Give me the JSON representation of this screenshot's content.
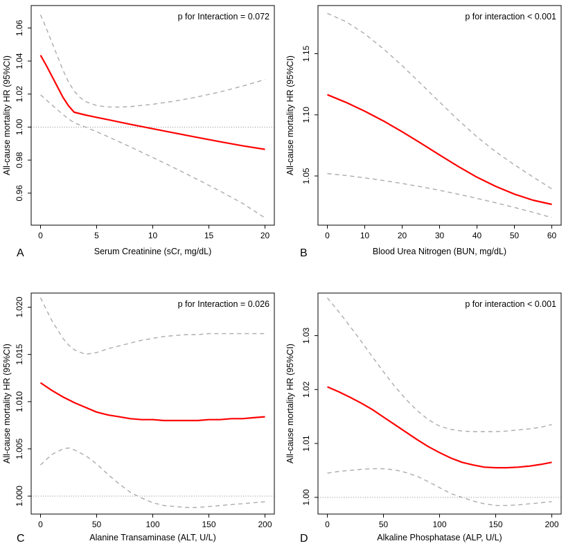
{
  "figure": {
    "description": "Restricted cubic spline plots of all-cause mortality hazard ratios, 2x2 grid of panels A-D",
    "grid": "2x2",
    "legend": "none",
    "background": "#ffffff"
  },
  "colors": {
    "estimate": "#ff0000",
    "confidence_interval": "#ababab",
    "reference_line": "#707070",
    "axis": "#000000"
  },
  "chart_data": [
    {
      "panel_label": "A",
      "type": "line",
      "annotation": "p for Interaction = 0.072",
      "xlabel": "Serum Creatinine (sCr, mg/dL)",
      "ylabel": "All-cause mortality HR (95%CI)",
      "x_tick_labels": [
        "0",
        "5",
        "10",
        "15",
        "20"
      ],
      "x_tick_values": [
        0,
        5,
        10,
        15,
        20
      ],
      "y_tick_labels": [
        "0.96",
        "0.98",
        "1.00",
        "1.02",
        "1.04",
        "1.06"
      ],
      "y_tick_values": [
        0.96,
        0.98,
        1.0,
        1.02,
        1.04,
        1.06
      ],
      "xlim": [
        -0.83,
        20.83
      ],
      "ylim": [
        0.9406,
        1.0736
      ],
      "grid": false,
      "reference_line_y": 1.0,
      "series": [
        {
          "name": "All-cause mortality HR",
          "role": "estimate",
          "line_style": "solid",
          "color": "#ff0000",
          "x": [
            0,
            0.5,
            1,
            1.5,
            2,
            2.5,
            3,
            4,
            5,
            6,
            8,
            10,
            12,
            14,
            16,
            18,
            20
          ],
          "y": [
            1.0435,
            1.0375,
            1.031,
            1.0245,
            1.018,
            1.0128,
            1.009,
            1.0073,
            1.0059,
            1.0045,
            1.0017,
            0.999,
            0.9963,
            0.9937,
            0.9911,
            0.9887,
            0.9865
          ]
        },
        {
          "name": "Upper 95% CI",
          "role": "ci-upper",
          "line_style": "dashed",
          "color": "#ababab",
          "x": [
            0,
            0.5,
            1,
            1.5,
            2,
            2.5,
            3,
            3.5,
            4,
            5,
            6,
            7,
            8,
            10,
            12,
            14,
            16,
            18,
            20
          ],
          "y": [
            1.068,
            1.06,
            1.0515,
            1.043,
            1.0345,
            1.0272,
            1.0218,
            1.018,
            1.0155,
            1.013,
            1.0122,
            1.0121,
            1.0124,
            1.0138,
            1.0158,
            1.0183,
            1.0213,
            1.0248,
            1.0288
          ]
        },
        {
          "name": "Lower 95% CI",
          "role": "ci-lower",
          "line_style": "dashed",
          "color": "#ababab",
          "x": [
            0,
            0.5,
            1,
            1.5,
            2,
            2.5,
            3,
            4,
            5,
            6,
            8,
            10,
            12,
            14,
            16,
            18,
            20
          ],
          "y": [
            1.0195,
            1.0165,
            1.0135,
            1.0105,
            1.0076,
            1.0049,
            1.0026,
            1.0,
            0.9972,
            0.9942,
            0.988,
            0.9816,
            0.975,
            0.9682,
            0.9612,
            0.9538,
            0.945
          ]
        }
      ]
    },
    {
      "panel_label": "B",
      "type": "line",
      "annotation": "p for interaction < 0.001",
      "xlabel": "Blood Urea Nitrogen (BUN, mg/dL)",
      "ylabel": "All-cause mortality HR (95%CI)",
      "x_tick_labels": [
        "0",
        "10",
        "20",
        "30",
        "40",
        "50",
        "60"
      ],
      "x_tick_values": [
        0,
        10,
        20,
        30,
        40,
        50,
        60
      ],
      "y_tick_labels": [
        "1.05",
        "1.10",
        "1.15"
      ],
      "y_tick_values": [
        1.05,
        1.1,
        1.15
      ],
      "xlim": [
        -2.5,
        62.5
      ],
      "ylim": [
        1.0098,
        1.1894
      ],
      "grid": false,
      "reference_line_y": null,
      "series": [
        {
          "name": "All-cause mortality HR",
          "role": "estimate",
          "line_style": "solid",
          "color": "#ff0000",
          "x": [
            0,
            5,
            10,
            15,
            20,
            25,
            30,
            35,
            40,
            45,
            50,
            55,
            60
          ],
          "y": [
            1.1165,
            1.1102,
            1.103,
            1.095,
            1.0862,
            1.0768,
            1.0672,
            1.0578,
            1.049,
            1.0415,
            1.0352,
            1.0302,
            1.0268
          ]
        },
        {
          "name": "Upper 95% CI",
          "role": "ci-upper",
          "line_style": "dashed",
          "color": "#ababab",
          "x": [
            0,
            5,
            10,
            15,
            20,
            25,
            30,
            35,
            40,
            45,
            50,
            55,
            60
          ],
          "y": [
            1.183,
            1.1762,
            1.1662,
            1.154,
            1.1402,
            1.1255,
            1.1105,
            1.0958,
            1.082,
            1.0698,
            1.0592,
            1.0492,
            1.0395
          ]
        },
        {
          "name": "Lower 95% CI",
          "role": "ci-lower",
          "line_style": "dashed",
          "color": "#ababab",
          "x": [
            0,
            5,
            10,
            15,
            20,
            25,
            30,
            35,
            40,
            45,
            50,
            55,
            60
          ],
          "y": [
            1.052,
            1.0504,
            1.0485,
            1.0463,
            1.0439,
            1.0412,
            1.0383,
            1.0351,
            1.0317,
            1.0281,
            1.0243,
            1.0203,
            1.016
          ]
        }
      ]
    },
    {
      "panel_label": "C",
      "type": "line",
      "annotation": "p for Interaction = 0.026",
      "xlabel": "Alanine Transaminase (ALT, U/L)",
      "ylabel": "All-cause mortality HR (95%CI)",
      "x_tick_labels": [
        "0",
        "50",
        "100",
        "150",
        "200"
      ],
      "x_tick_values": [
        0,
        50,
        100,
        150,
        200
      ],
      "y_tick_labels": [
        "1.000",
        "1.005",
        "1.010",
        "1.015",
        "1.020"
      ],
      "y_tick_values": [
        1.0,
        1.005,
        1.01,
        1.015,
        1.02
      ],
      "xlim": [
        -8.33,
        208.33
      ],
      "ylim": [
        0.9981,
        1.0215
      ],
      "grid": false,
      "reference_line_y": 1.0,
      "series": [
        {
          "name": "All-cause mortality HR",
          "role": "estimate",
          "line_style": "solid",
          "color": "#ff0000",
          "x": [
            0,
            10,
            20,
            25,
            30,
            40,
            50,
            60,
            70,
            80,
            90,
            100,
            110,
            120,
            130,
            140,
            150,
            160,
            170,
            180,
            190,
            200
          ],
          "y": [
            1.012,
            1.0112,
            1.0105,
            1.0102,
            1.0099,
            1.0094,
            1.0089,
            1.0086,
            1.0084,
            1.0082,
            1.0081,
            1.0081,
            1.008,
            1.008,
            1.008,
            1.008,
            1.0081,
            1.0081,
            1.0082,
            1.0082,
            1.0083,
            1.0084
          ]
        },
        {
          "name": "Upper 95% CI",
          "role": "ci-upper",
          "line_style": "dashed",
          "color": "#ababab",
          "x": [
            0,
            10,
            20,
            25,
            30,
            40,
            50,
            60,
            70,
            80,
            90,
            100,
            110,
            120,
            130,
            140,
            150,
            160,
            170,
            180,
            190,
            200
          ],
          "y": [
            1.021,
            1.0186,
            1.0167,
            1.016,
            1.0155,
            1.015,
            1.0152,
            1.0156,
            1.0159,
            1.0162,
            1.0165,
            1.0167,
            1.0169,
            1.017,
            1.0171,
            1.0171,
            1.0172,
            1.0172,
            1.0172,
            1.0172,
            1.0172,
            1.0172
          ]
        },
        {
          "name": "Lower 95% CI",
          "role": "ci-lower",
          "line_style": "dashed",
          "color": "#ababab",
          "x": [
            0,
            10,
            20,
            25,
            30,
            40,
            50,
            60,
            70,
            80,
            90,
            100,
            110,
            120,
            130,
            140,
            150,
            160,
            170,
            180,
            190,
            200
          ],
          "y": [
            1.0033,
            1.0044,
            1.005,
            1.0051,
            1.0049,
            1.0043,
            1.0034,
            1.0023,
            1.0013,
            1.0004,
            0.9998,
            0.9993,
            0.999,
            0.9989,
            0.9988,
            0.9988,
            0.9989,
            0.999,
            0.9991,
            0.9992,
            0.9993,
            0.9994
          ]
        }
      ]
    },
    {
      "panel_label": "D",
      "type": "line",
      "annotation": "p for interaction < 0.001",
      "xlabel": "Alkaline Phosphatase (ALP, U/L)",
      "ylabel": "All-cause mortality HR (95%CI)",
      "x_tick_labels": [
        "0",
        "50",
        "100",
        "150",
        "200"
      ],
      "x_tick_values": [
        0,
        50,
        100,
        150,
        200
      ],
      "y_tick_labels": [
        "1.00",
        "1.01",
        "1.02",
        "1.03"
      ],
      "y_tick_values": [
        1.0,
        1.01,
        1.02,
        1.03
      ],
      "xlim": [
        -8.33,
        208.33
      ],
      "ylim": [
        0.9969,
        1.0379
      ],
      "grid": false,
      "reference_line_y": 1.0,
      "series": [
        {
          "name": "All-cause mortality HR",
          "role": "estimate",
          "line_style": "solid",
          "color": "#ff0000",
          "x": [
            0,
            10,
            20,
            30,
            40,
            50,
            60,
            70,
            80,
            90,
            100,
            110,
            120,
            130,
            140,
            150,
            160,
            170,
            180,
            190,
            200
          ],
          "y": [
            1.0205,
            1.0196,
            1.0186,
            1.0175,
            1.0163,
            1.0149,
            1.0135,
            1.0121,
            1.0107,
            1.0094,
            1.0083,
            1.0073,
            1.0065,
            1.006,
            1.0056,
            1.0055,
            1.0055,
            1.0056,
            1.0058,
            1.0061,
            1.0065
          ]
        },
        {
          "name": "Upper 95% CI",
          "role": "ci-upper",
          "line_style": "dashed",
          "color": "#ababab",
          "x": [
            0,
            10,
            20,
            30,
            40,
            50,
            60,
            70,
            80,
            90,
            100,
            110,
            120,
            130,
            140,
            150,
            160,
            170,
            180,
            190,
            200
          ],
          "y": [
            1.037,
            1.0345,
            1.0318,
            1.029,
            1.0261,
            1.0233,
            1.0206,
            1.0182,
            1.0161,
            1.0144,
            1.0132,
            1.0126,
            1.0123,
            1.0122,
            1.0122,
            1.0122,
            1.0123,
            1.0125,
            1.0127,
            1.013,
            1.0135
          ]
        },
        {
          "name": "Lower 95% CI",
          "role": "ci-lower",
          "line_style": "dashed",
          "color": "#ababab",
          "x": [
            0,
            10,
            20,
            30,
            40,
            50,
            60,
            70,
            80,
            90,
            100,
            110,
            120,
            130,
            140,
            150,
            160,
            170,
            180,
            190,
            200
          ],
          "y": [
            1.0045,
            1.0048,
            1.005,
            1.0052,
            1.0053,
            1.0053,
            1.0051,
            1.0046,
            1.0039,
            1.0029,
            1.0018,
            1.0007,
            1.0,
            0.9993,
            0.9988,
            0.9985,
            0.9985,
            0.9986,
            0.9988,
            0.999,
            0.9992
          ]
        }
      ]
    }
  ]
}
